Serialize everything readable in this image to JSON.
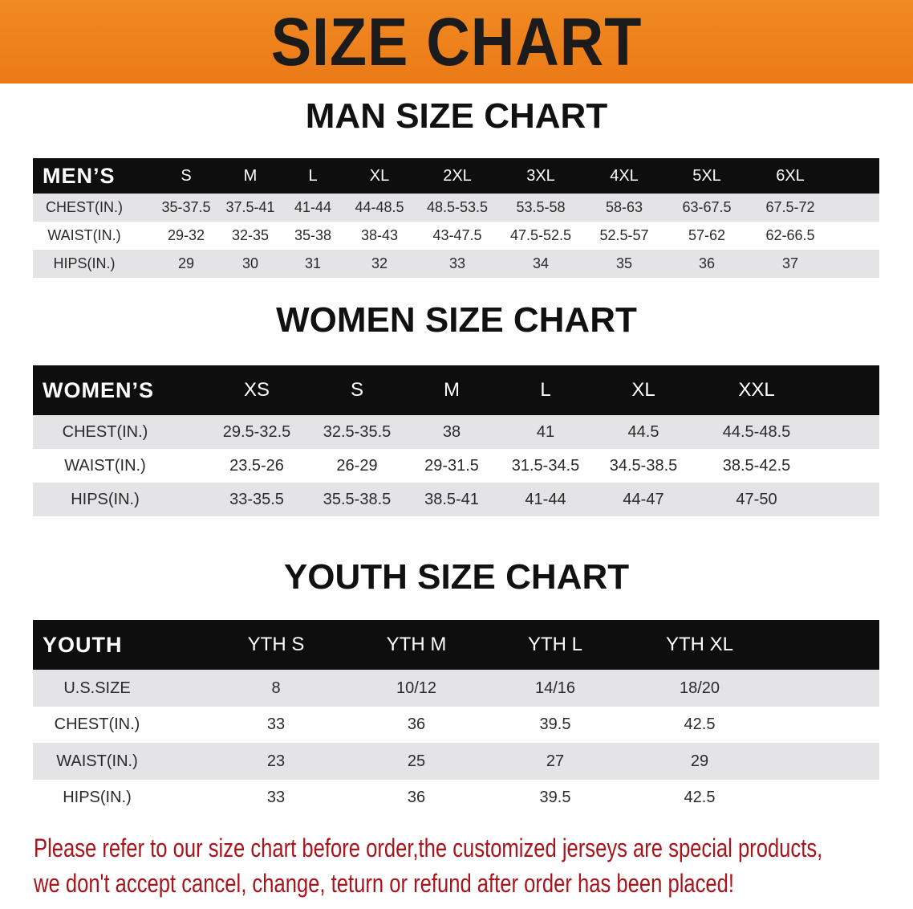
{
  "banner": {
    "title": "SIZE CHART",
    "background": "#ec7a17"
  },
  "men": {
    "heading": "MAN SIZE CHART",
    "header_label": "MEN’S",
    "sizes": [
      "S",
      "M",
      "L",
      "XL",
      "2XL",
      "3XL",
      "4XL",
      "5XL",
      "6XL"
    ],
    "rows": [
      {
        "label": "CHEST(IN.)",
        "values": [
          "35-37.5",
          "37.5-41",
          "41-44",
          "44-48.5",
          "48.5-53.5",
          "53.5-58",
          "58-63",
          "63-67.5",
          "67.5-72"
        ]
      },
      {
        "label": "WAIST(IN.)",
        "values": [
          "29-32",
          "32-35",
          "35-38",
          "38-43",
          "43-47.5",
          "47.5-52.5",
          "52.5-57",
          "57-62",
          "62-66.5"
        ]
      },
      {
        "label": "HIPS(IN.)",
        "values": [
          "29",
          "30",
          "31",
          "32",
          "33",
          "34",
          "35",
          "36",
          "37"
        ]
      }
    ]
  },
  "women": {
    "heading": "WOMEN SIZE CHART",
    "header_label": "WOMEN’S",
    "sizes": [
      "XS",
      "S",
      "M",
      "L",
      "XL",
      "XXL"
    ],
    "rows": [
      {
        "label": "CHEST(IN.)",
        "values": [
          "29.5-32.5",
          "32.5-35.5",
          "38",
          "41",
          "44.5",
          "44.5-48.5"
        ]
      },
      {
        "label": "WAIST(IN.)",
        "values": [
          "23.5-26",
          "26-29",
          "29-31.5",
          "31.5-34.5",
          "34.5-38.5",
          "38.5-42.5"
        ]
      },
      {
        "label": "HIPS(IN.)",
        "values": [
          "33-35.5",
          "35.5-38.5",
          "38.5-41",
          "41-44",
          "44-47",
          "47-50"
        ]
      }
    ]
  },
  "youth": {
    "heading": "YOUTH SIZE CHART",
    "header_label": "YOUTH",
    "sizes": [
      "YTH S",
      "YTH M",
      "YTH L",
      "YTH XL"
    ],
    "rows": [
      {
        "label": "U.S.SIZE",
        "values": [
          "8",
          "10/12",
          "14/16",
          "18/20"
        ]
      },
      {
        "label": "CHEST(IN.)",
        "values": [
          "33",
          "36",
          "39.5",
          "42.5"
        ]
      },
      {
        "label": "WAIST(IN.)",
        "values": [
          "23",
          "25",
          "27",
          "29"
        ]
      },
      {
        "label": "HIPS(IN.)",
        "values": [
          "33",
          "36",
          "39.5",
          "42.5"
        ]
      }
    ]
  },
  "note": {
    "line1": "Please refer to our size chart before order,the customized jerseys are special products,",
    "line2": "we don't accept cancel, change, teturn or refund after order has been placed!",
    "color": "#a8141c"
  }
}
